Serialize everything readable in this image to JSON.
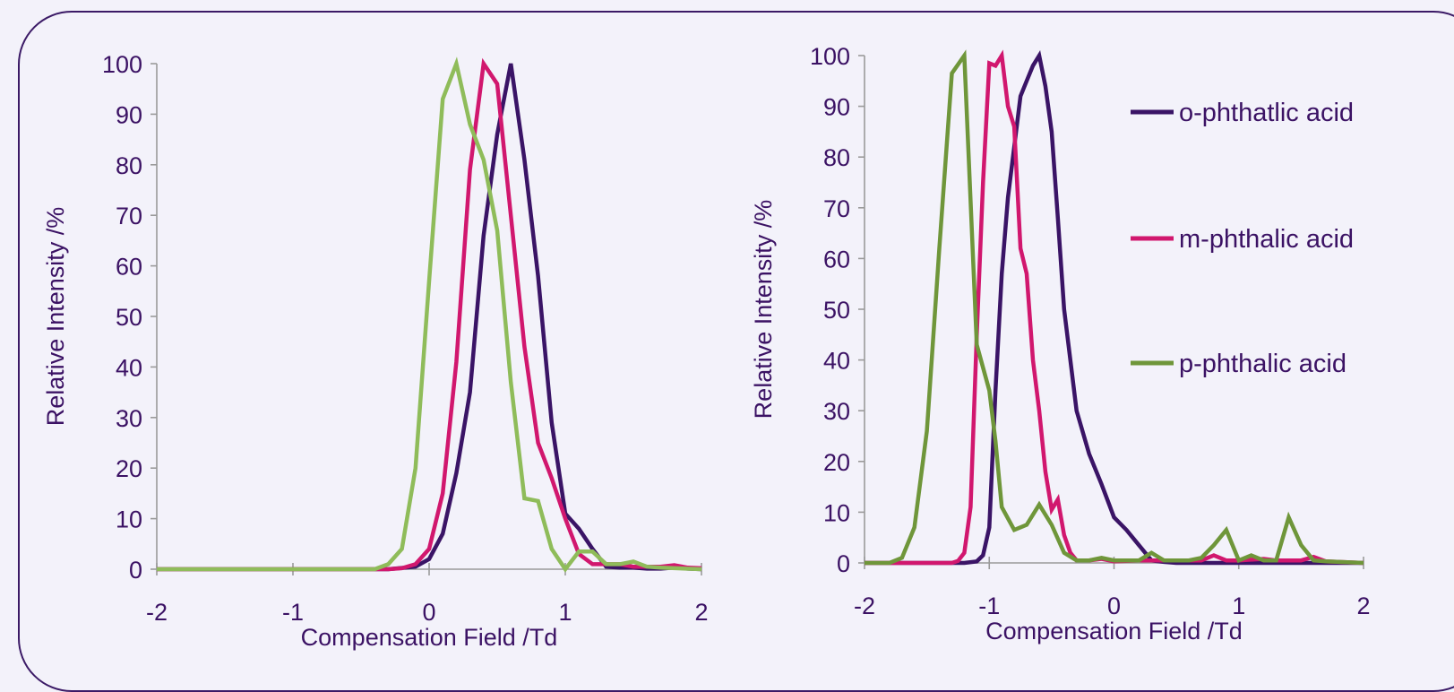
{
  "chart_data": [
    {
      "type": "line",
      "xlabel": "Compensation Field /Td",
      "ylabel": "Relative Intensity /%",
      "xlim": [
        -2,
        2
      ],
      "ylim": [
        0,
        100
      ],
      "xticks": [
        "-2",
        "-1",
        "0",
        "1",
        "2"
      ],
      "yticks": [
        "0",
        "10",
        "20",
        "30",
        "40",
        "50",
        "60",
        "70",
        "80",
        "90",
        "100"
      ],
      "grid": false,
      "legend": "none",
      "series": [
        {
          "color": "#3a1466",
          "x": [
            -2,
            -0.3,
            -0.1,
            0,
            0.1,
            0.2,
            0.3,
            0.4,
            0.5,
            0.6,
            0.7,
            0.8,
            0.9,
            1.0,
            1.1,
            1.2,
            1.3,
            1.4,
            1.5,
            1.6,
            1.7,
            1.8,
            1.9,
            2.0
          ],
          "y": [
            0,
            0,
            0.5,
            2,
            7,
            19,
            35,
            66,
            86,
            100,
            81,
            58,
            29,
            11,
            8,
            4,
            0.5,
            0.3,
            0.3,
            0.1,
            0.1,
            0.3,
            0.1,
            0
          ]
        },
        {
          "color": "#d1176e",
          "x": [
            -2,
            -0.3,
            -0.2,
            -0.1,
            0,
            0.1,
            0.2,
            0.3,
            0.4,
            0.5,
            0.6,
            0.7,
            0.8,
            0.9,
            1.0,
            1.1,
            1.2,
            1.3,
            1.4,
            1.5,
            1.6,
            1.7,
            1.8,
            1.9,
            2.0
          ],
          "y": [
            0,
            0,
            0.2,
            1,
            4,
            15,
            41,
            79,
            100,
            96,
            70,
            44,
            25,
            18,
            10,
            3,
            1,
            1,
            1,
            0.5,
            0.5,
            0.5,
            0.8,
            0.3,
            0.2
          ]
        },
        {
          "color": "#8fbc5a",
          "x": [
            -2,
            -0.4,
            -0.3,
            -0.2,
            -0.1,
            0,
            0.1,
            0.2,
            0.3,
            0.4,
            0.5,
            0.6,
            0.7,
            0.8,
            0.9,
            1.0,
            1.1,
            1.2,
            1.3,
            1.4,
            1.5,
            1.6,
            1.7,
            2.0
          ],
          "y": [
            0,
            0,
            1,
            4,
            20,
            57,
            93,
            100,
            88,
            81,
            67,
            37,
            14,
            13.5,
            4,
            0,
            3.5,
            3.5,
            1,
            1,
            1.5,
            0.5,
            0.3,
            0
          ]
        }
      ]
    },
    {
      "type": "line",
      "xlabel": "Compensation Field /Td",
      "ylabel": "Relative Intensity /%",
      "xlim": [
        -2,
        2
      ],
      "ylim": [
        0,
        100
      ],
      "xticks": [
        "-2",
        "-1",
        "0",
        "1",
        "2"
      ],
      "yticks": [
        "0",
        "10",
        "20",
        "30",
        "40",
        "50",
        "60",
        "70",
        "80",
        "90",
        "100"
      ],
      "grid": false,
      "legend": "right",
      "series": [
        {
          "name": "o-phthatlic acid",
          "color": "#3a1466",
          "x": [
            -2,
            -1.2,
            -1.1,
            -1.05,
            -1.0,
            -0.95,
            -0.9,
            -0.85,
            -0.8,
            -0.75,
            -0.7,
            -0.65,
            -0.6,
            -0.55,
            -0.5,
            -0.45,
            -0.4,
            -0.3,
            -0.2,
            -0.1,
            0,
            0.1,
            0.2,
            0.3,
            0.4,
            0.5,
            1.0,
            1.5,
            2.0
          ],
          "y": [
            0,
            0,
            0.3,
            1.5,
            7,
            34,
            57,
            72,
            82,
            92,
            95,
            98,
            100,
            94,
            85,
            68,
            50,
            30,
            21.5,
            15.5,
            9,
            6.5,
            3.5,
            0.5,
            0.2,
            0,
            0,
            0,
            0
          ]
        },
        {
          "name": "m-phthalic acid",
          "color": "#d1176e",
          "x": [
            -2,
            -1.7,
            -1.3,
            -1.25,
            -1.2,
            -1.15,
            -1.1,
            -1.05,
            -1.0,
            -0.95,
            -0.9,
            -0.85,
            -0.8,
            -0.75,
            -0.7,
            -0.65,
            -0.6,
            -0.55,
            -0.5,
            -0.45,
            -0.4,
            -0.35,
            -0.3,
            -0.2,
            -0.1,
            0,
            0.2,
            0.5,
            0.7,
            0.8,
            0.9,
            1.0,
            1.2,
            1.3,
            1.4,
            1.5,
            1.6,
            1.7,
            2.0
          ],
          "y": [
            0,
            0,
            0,
            0.4,
            2,
            11,
            45,
            75,
            98.5,
            98,
            100,
            90,
            86,
            62,
            57,
            40,
            30,
            18,
            10.5,
            12.5,
            5.5,
            2,
            0.5,
            0.5,
            0.8,
            0.3,
            0.5,
            0.5,
            0.5,
            1.5,
            0.5,
            0.5,
            0.8,
            0.5,
            0.5,
            0.5,
            1.2,
            0.3,
            0
          ]
        },
        {
          "name": "p-phthalic acid",
          "color": "#6f963a",
          "x": [
            -2,
            -1.8,
            -1.7,
            -1.6,
            -1.5,
            -1.4,
            -1.3,
            -1.2,
            -1.1,
            -1.0,
            -0.95,
            -0.9,
            -0.8,
            -0.7,
            -0.6,
            -0.5,
            -0.4,
            -0.3,
            -0.2,
            -0.1,
            0,
            0.1,
            0.2,
            0.3,
            0.4,
            0.5,
            0.6,
            0.7,
            0.8,
            0.9,
            1.0,
            1.1,
            1.2,
            1.3,
            1.4,
            1.5,
            1.6,
            1.7,
            2.0
          ],
          "y": [
            0,
            0,
            1,
            7,
            26,
            62,
            96.5,
            100,
            43,
            34,
            24,
            11,
            6.5,
            7.5,
            11.5,
            7.5,
            2,
            0.5,
            0.5,
            1,
            0.5,
            0.5,
            0.5,
            2,
            0.5,
            0.5,
            0.5,
            1,
            3.5,
            6.5,
            0.5,
            1.5,
            0.5,
            0.5,
            9,
            3.5,
            0.5,
            0.3,
            0
          ]
        }
      ]
    }
  ]
}
